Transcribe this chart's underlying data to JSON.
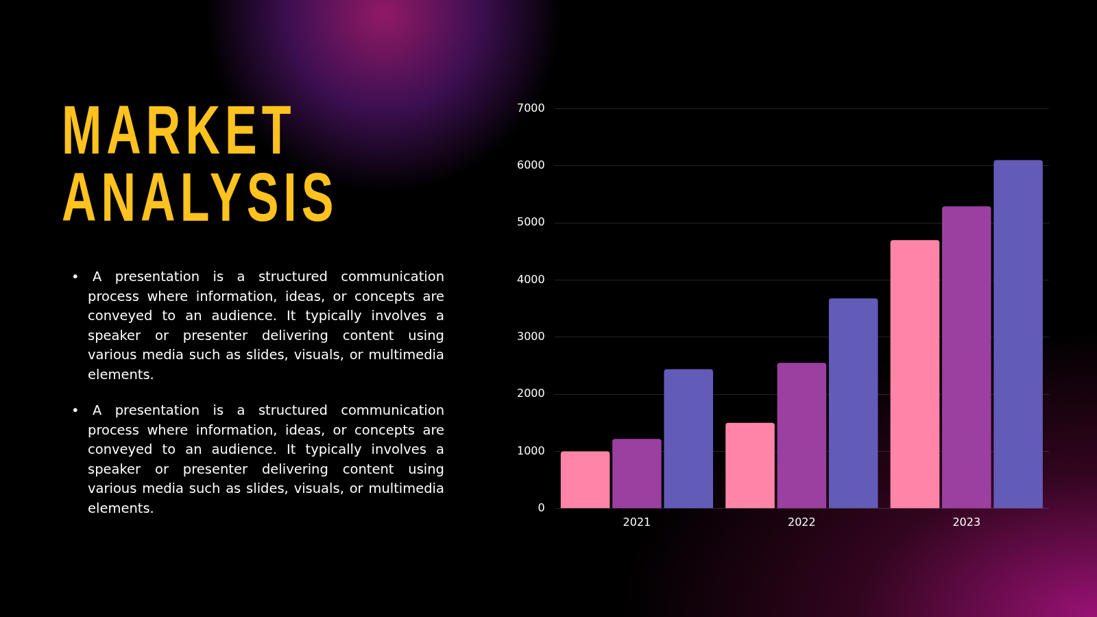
{
  "chart_data": {
    "type": "bar",
    "title": "MARKET ANALYSIS",
    "annotations": [
      "• A presentation is a structured communication process where information, ideas, or concepts are conveyed to an audience. It typically involves a speaker or presenter delivering content using various media such as slides, visuals, or multimedia elements.",
      "• A presentation is a structured communication process where information, ideas, or concepts are conveyed to an audience. It typically involves a speaker or presenter delivering content using various media such as slides, visuals, or multimedia elements."
    ],
    "categories": [
      "2021",
      "2022",
      "2023"
    ],
    "series": [
      {
        "color": "#ff85a8",
        "values": [
          1000,
          1500,
          4700
        ]
      },
      {
        "color": "#9b3fa0",
        "values": [
          1220,
          2550,
          5290
        ]
      },
      {
        "color": "#625bb8",
        "values": [
          2440,
          3680,
          6100
        ]
      }
    ],
    "ylim": [
      0,
      7000
    ],
    "yticks": [
      0,
      1000,
      2000,
      3000,
      4000,
      5000,
      6000,
      7000
    ],
    "grid": "y"
  }
}
